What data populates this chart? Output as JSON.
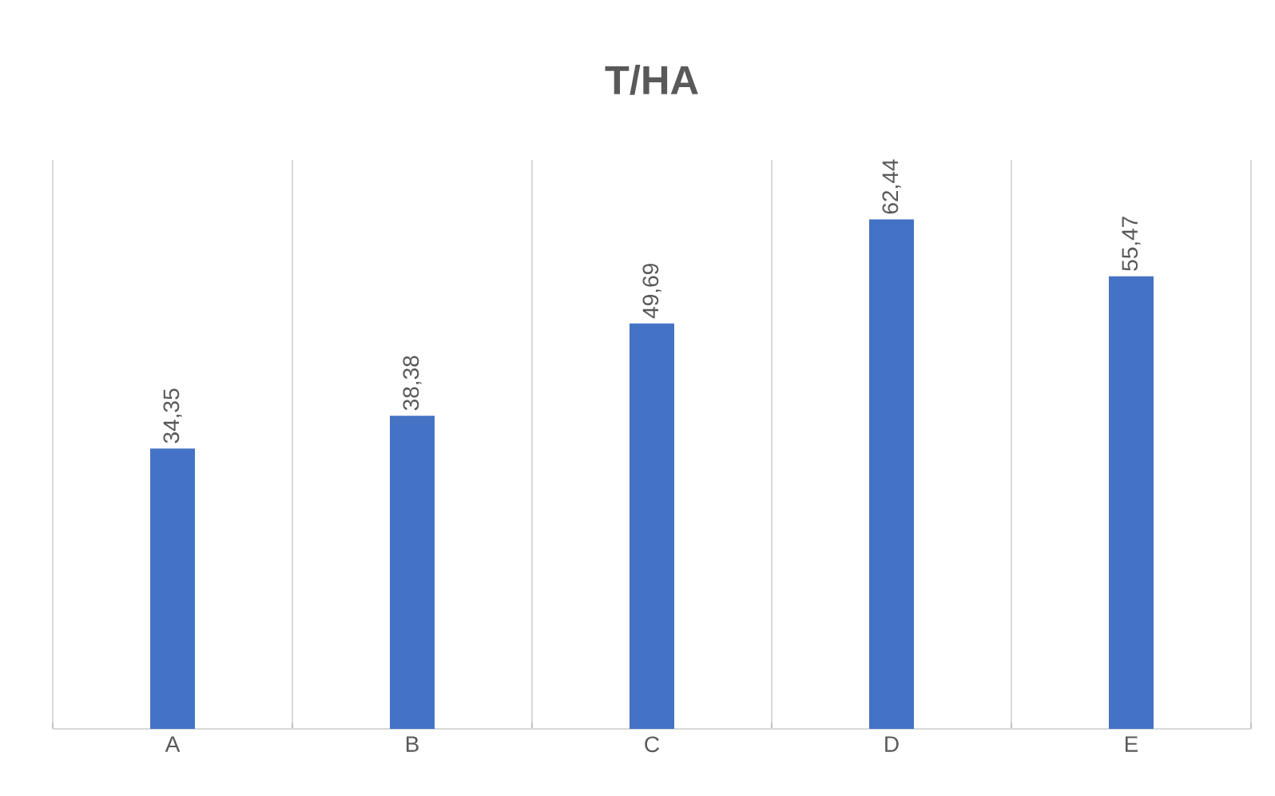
{
  "chart_data": {
    "type": "bar",
    "title": "T/HA",
    "categories": [
      "A",
      "B",
      "C",
      "D",
      "E"
    ],
    "values": [
      34.35,
      38.38,
      49.69,
      62.44,
      55.47
    ],
    "value_labels": [
      "34,35",
      "38,38",
      "49,69",
      "62,44",
      "55,47"
    ],
    "color": "#4472c4",
    "grid": "x"
  }
}
